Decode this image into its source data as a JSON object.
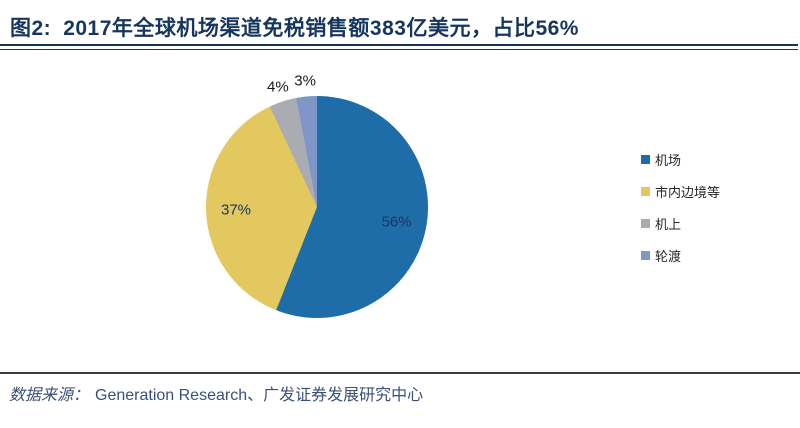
{
  "header": {
    "title_prefix": "图2:",
    "title": "2017年全球机场渠道免税销售额383亿美元，占比56%"
  },
  "chart_data": {
    "type": "pie",
    "title": "2017年全球机场渠道免税销售额383亿美元，占比56%",
    "value_format": "percent",
    "start_angle_deg": 0,
    "direction": "clockwise",
    "legend_position": "right",
    "slices": [
      {
        "label": "机场",
        "value": 56,
        "color": "#1E6CA8",
        "label_position": "inside"
      },
      {
        "label": "市内边境等",
        "value": 37,
        "color": "#E3C75F",
        "label_position": "inside"
      },
      {
        "label": "机上",
        "value": 4,
        "color": "#ABABB2",
        "label_position": "outside"
      },
      {
        "label": "轮渡",
        "value": 3,
        "color": "#7E96C8",
        "label_position": "outside"
      }
    ]
  },
  "footer": {
    "source_label": "数据来源：",
    "source_text": "Generation Research、广发证券发展研究中心"
  },
  "colors": {
    "title": "#17365D",
    "rule": "#17365D",
    "footer_rule": "#3C3C3C",
    "footer_text": "#3A5078",
    "label_inside": "#17375E",
    "label_outside": "#1A1A1A",
    "legend_text": "#262626"
  }
}
